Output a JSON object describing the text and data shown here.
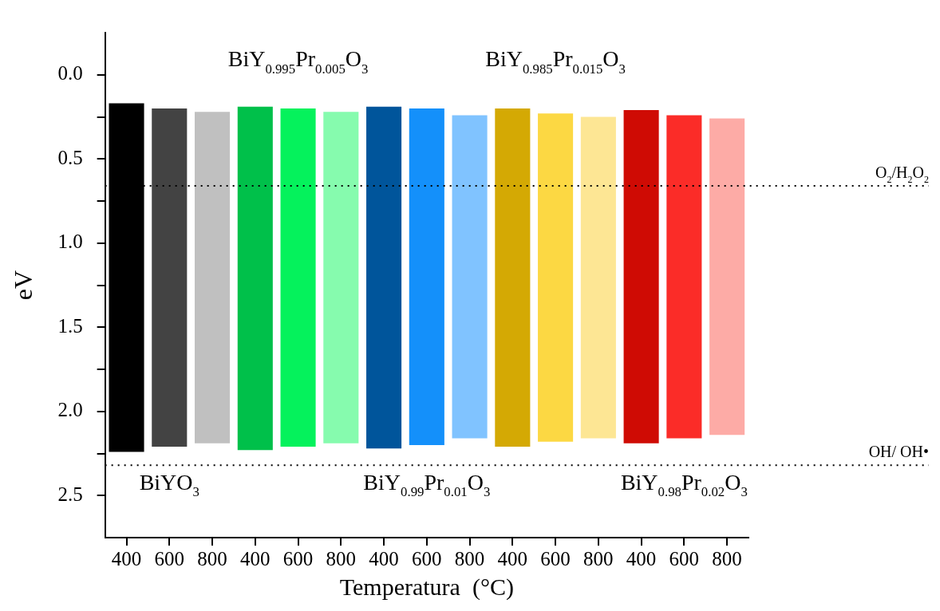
{
  "chart_data": {
    "type": "bar",
    "xlabel": "Temperatura  (°C)",
    "ylabel": "eV",
    "categories": [
      "400",
      "600",
      "800",
      "400",
      "600",
      "800",
      "400",
      "600",
      "800",
      "400",
      "600",
      "800",
      "400",
      "600",
      "800"
    ],
    "base": [
      0.17,
      0.2,
      0.22,
      0.19,
      0.2,
      0.22,
      0.19,
      0.2,
      0.24,
      0.2,
      0.23,
      0.25,
      0.21,
      0.24,
      0.26
    ],
    "values": [
      2.07,
      2.01,
      1.97,
      2.04,
      2.01,
      1.97,
      2.03,
      2.0,
      1.92,
      2.01,
      1.95,
      1.91,
      1.98,
      1.92,
      1.88
    ],
    "colors": [
      "#000000",
      "#434343",
      "#c0c0c0",
      "#00c04a",
      "#05f25c",
      "#86fbae",
      "#00559b",
      "#1490fa",
      "#80c3ff",
      "#d4a904",
      "#fcd843",
      "#fde694",
      "#cf0b04",
      "#fb2c28",
      "#fdaba6"
    ],
    "ylim": [
      2.75,
      -0.25
    ],
    "yticks": [
      {
        "value": 0,
        "label": "0.0"
      },
      {
        "value": 0.25,
        "label": null
      },
      0.5,
      {
        "value": 0.75,
        "label": null
      },
      {
        "value": 1,
        "label": "1.0"
      },
      {
        "value": 1.25,
        "label": null
      },
      1.5,
      {
        "value": 1.75,
        "label": null
      },
      {
        "value": 2,
        "label": "2.0"
      },
      {
        "value": 2.25,
        "label": null
      },
      2.5
    ],
    "ref_lines": [
      {
        "axis": "y",
        "value": 0.66,
        "label": "O$_{2}$/H$_{2}$O$_{2}$",
        "line_style": "dotted"
      },
      {
        "axis": "y",
        "value": 2.32,
        "label": "OH/ OH•",
        "line_style": "dotted"
      }
    ],
    "annotations": [
      "BiYO$_{3}$",
      "BiY$_{0.995}$Pr$_{0.005}$O$_{3}$",
      "BiY$_{0.99}$Pr$_{0.01}$O$_{3}$",
      "BiY$_{0.985}$Pr$_{0.015}$O$_{3}$",
      "BiY$_{0.98}$Pr$_{0.02}$O$_{3}$"
    ],
    "legend": false
  }
}
